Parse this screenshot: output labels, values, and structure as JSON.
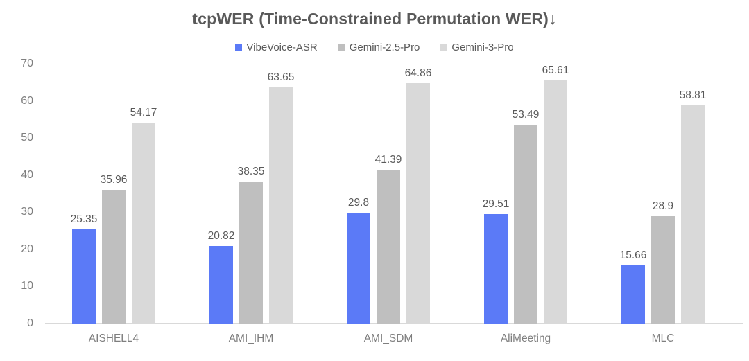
{
  "chart_data": {
    "type": "bar",
    "title": "tcpWER (Time-Constrained Permutation WER)↓",
    "xlabel": "",
    "ylabel": "",
    "categories": [
      "AISHELL4",
      "AMI_IHM",
      "AMI_SDM",
      "AliMeeting",
      "MLC"
    ],
    "series": [
      {
        "name": "VibeVoice-ASR",
        "color": "#5b7af7",
        "values": [
          25.35,
          20.82,
          29.8,
          29.51,
          15.66
        ]
      },
      {
        "name": "Gemini-2.5-Pro",
        "color": "#bfbfbf",
        "values": [
          35.96,
          38.35,
          41.39,
          53.49,
          28.9
        ]
      },
      {
        "name": "Gemini-3-Pro",
        "color": "#d9d9d9",
        "values": [
          54.17,
          63.65,
          64.86,
          65.61,
          58.81
        ]
      }
    ],
    "ylim": [
      0,
      70
    ],
    "yticks": [
      0,
      10,
      20,
      30,
      40,
      50,
      60,
      70
    ],
    "grid": false,
    "legend_position": "top",
    "data_labels": true,
    "colors": {
      "title_text": "#595959",
      "value_label_text": "#595959",
      "axis_text": "#7f7f7f",
      "axis_line": "#d9d9d9",
      "background": "#ffffff"
    }
  }
}
